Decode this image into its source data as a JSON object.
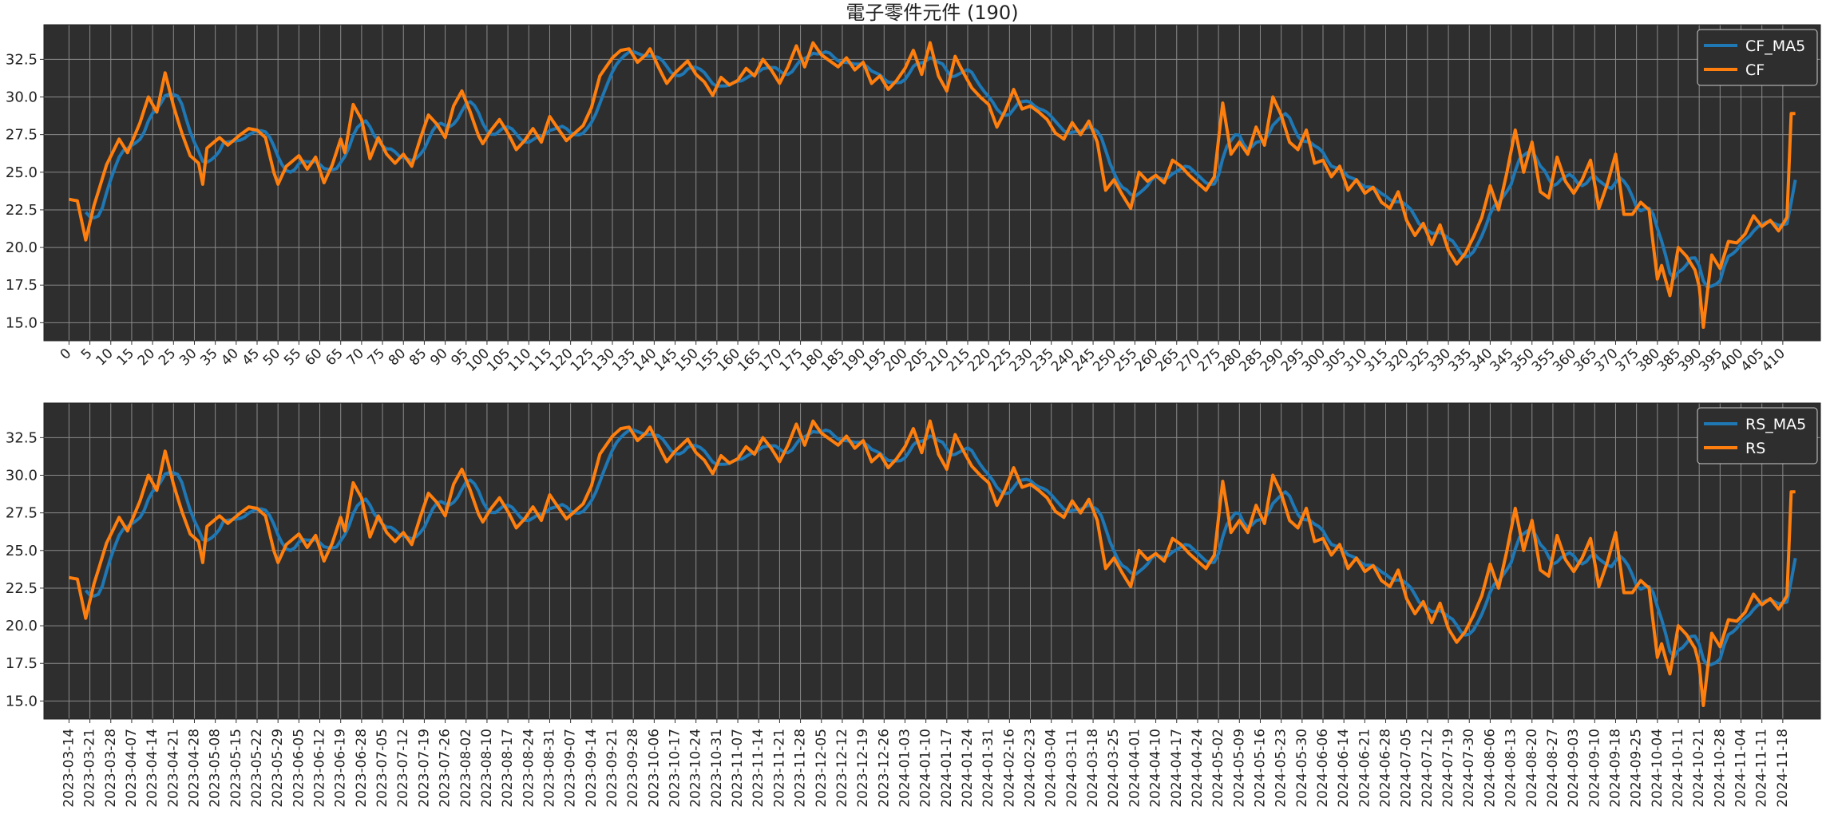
{
  "colors": {
    "background": "#ffffff",
    "plot_background": "#2e2e2e",
    "grid": "#8a8a8a",
    "ma_line": "#1f77b4",
    "raw_line": "#ff7f0e",
    "legend_background": "#2e2e2e",
    "legend_text": "#ffffff",
    "text": "#222222"
  },
  "chart_data": [
    {
      "type": "line",
      "title": "電子零件元件 (190)",
      "xlabel": "",
      "ylabel": "",
      "ylim": [
        13.8,
        34.8
      ],
      "xlim": [
        -6,
        419
      ],
      "yticks": [
        15.0,
        17.5,
        20.0,
        22.5,
        25.0,
        27.5,
        30.0,
        32.5
      ],
      "ytick_labels": [
        "15.0",
        "17.5",
        "20.0",
        "22.5",
        "25.0",
        "27.5",
        "30.0",
        "32.5"
      ],
      "xticks": [
        0,
        5,
        10,
        15,
        20,
        25,
        30,
        35,
        40,
        45,
        50,
        55,
        60,
        65,
        70,
        75,
        80,
        85,
        90,
        95,
        100,
        105,
        110,
        115,
        120,
        125,
        130,
        135,
        140,
        145,
        150,
        155,
        160,
        165,
        170,
        175,
        180,
        185,
        190,
        195,
        200,
        205,
        210,
        215,
        220,
        225,
        230,
        235,
        240,
        245,
        250,
        255,
        260,
        265,
        270,
        275,
        280,
        285,
        290,
        295,
        300,
        305,
        310,
        315,
        320,
        325,
        330,
        335,
        340,
        345,
        350,
        355,
        360,
        365,
        370,
        375,
        380,
        385,
        390,
        395,
        400,
        405,
        410
      ],
      "xtick_labels": [
        "0",
        "5",
        "10",
        "15",
        "20",
        "25",
        "30",
        "35",
        "40",
        "45",
        "50",
        "55",
        "60",
        "65",
        "70",
        "75",
        "80",
        "85",
        "90",
        "95",
        "100",
        "105",
        "110",
        "115",
        "120",
        "125",
        "130",
        "135",
        "140",
        "145",
        "150",
        "155",
        "160",
        "165",
        "170",
        "175",
        "180",
        "185",
        "190",
        "195",
        "200",
        "205",
        "210",
        "215",
        "220",
        "225",
        "230",
        "235",
        "240",
        "245",
        "250",
        "255",
        "260",
        "265",
        "270",
        "275",
        "280",
        "285",
        "290",
        "295",
        "300",
        "305",
        "310",
        "315",
        "320",
        "325",
        "330",
        "335",
        "340",
        "345",
        "350",
        "355",
        "360",
        "365",
        "370",
        "375",
        "380",
        "385",
        "390",
        "395",
        "400",
        "405",
        "410"
      ],
      "grid": true,
      "legend_position": "top-right",
      "anchors": [
        [
          0,
          23.2
        ],
        [
          2,
          23.1
        ],
        [
          4,
          20.5
        ],
        [
          6,
          22.8
        ],
        [
          9,
          25.5
        ],
        [
          12,
          27.2
        ],
        [
          14,
          26.3
        ],
        [
          17,
          28.3
        ],
        [
          19,
          30.0
        ],
        [
          21,
          29.0
        ],
        [
          23,
          31.6
        ],
        [
          25,
          29.4
        ],
        [
          27,
          27.6
        ],
        [
          29,
          26.1
        ],
        [
          31,
          25.6
        ],
        [
          32,
          24.2
        ],
        [
          33,
          26.6
        ],
        [
          36,
          27.3
        ],
        [
          38,
          26.8
        ],
        [
          41,
          27.5
        ],
        [
          43,
          27.9
        ],
        [
          45,
          27.8
        ],
        [
          47,
          27.3
        ],
        [
          49,
          25.0
        ],
        [
          50,
          24.2
        ],
        [
          52,
          25.4
        ],
        [
          55,
          26.1
        ],
        [
          57,
          25.2
        ],
        [
          59,
          26.0
        ],
        [
          61,
          24.3
        ],
        [
          63,
          25.5
        ],
        [
          65,
          27.2
        ],
        [
          66,
          26.3
        ],
        [
          68,
          29.5
        ],
        [
          70,
          28.5
        ],
        [
          72,
          25.9
        ],
        [
          74,
          27.3
        ],
        [
          76,
          26.2
        ],
        [
          78,
          25.6
        ],
        [
          80,
          26.2
        ],
        [
          82,
          25.4
        ],
        [
          84,
          27.2
        ],
        [
          86,
          28.8
        ],
        [
          88,
          28.2
        ],
        [
          90,
          27.3
        ],
        [
          92,
          29.4
        ],
        [
          94,
          30.4
        ],
        [
          96,
          29.0
        ],
        [
          98,
          27.4
        ],
        [
          99,
          26.9
        ],
        [
          101,
          27.8
        ],
        [
          103,
          28.5
        ],
        [
          105,
          27.6
        ],
        [
          107,
          26.5
        ],
        [
          109,
          27.1
        ],
        [
          111,
          27.9
        ],
        [
          113,
          27.0
        ],
        [
          115,
          28.7
        ],
        [
          117,
          27.9
        ],
        [
          119,
          27.1
        ],
        [
          121,
          27.6
        ],
        [
          123,
          28.1
        ],
        [
          125,
          29.3
        ],
        [
          127,
          31.4
        ],
        [
          130,
          32.6
        ],
        [
          132,
          33.1
        ],
        [
          134,
          33.2
        ],
        [
          136,
          32.3
        ],
        [
          138,
          32.8
        ],
        [
          139,
          33.2
        ],
        [
          141,
          32.0
        ],
        [
          143,
          30.9
        ],
        [
          145,
          31.6
        ],
        [
          148,
          32.4
        ],
        [
          150,
          31.5
        ],
        [
          152,
          31.0
        ],
        [
          154,
          30.1
        ],
        [
          156,
          31.3
        ],
        [
          158,
          30.8
        ],
        [
          160,
          31.1
        ],
        [
          162,
          31.9
        ],
        [
          164,
          31.4
        ],
        [
          166,
          32.5
        ],
        [
          168,
          31.8
        ],
        [
          170,
          30.9
        ],
        [
          172,
          32.0
        ],
        [
          174,
          33.4
        ],
        [
          176,
          32.0
        ],
        [
          178,
          33.6
        ],
        [
          180,
          32.8
        ],
        [
          182,
          32.4
        ],
        [
          184,
          32.0
        ],
        [
          186,
          32.6
        ],
        [
          188,
          31.8
        ],
        [
          190,
          32.3
        ],
        [
          192,
          30.9
        ],
        [
          194,
          31.4
        ],
        [
          196,
          30.5
        ],
        [
          198,
          31.1
        ],
        [
          200,
          31.9
        ],
        [
          202,
          33.1
        ],
        [
          204,
          31.5
        ],
        [
          206,
          33.6
        ],
        [
          208,
          31.4
        ],
        [
          210,
          30.4
        ],
        [
          212,
          32.7
        ],
        [
          214,
          31.6
        ],
        [
          216,
          30.6
        ],
        [
          218,
          30.0
        ],
        [
          220,
          29.5
        ],
        [
          222,
          28.0
        ],
        [
          224,
          29.1
        ],
        [
          226,
          30.5
        ],
        [
          228,
          29.2
        ],
        [
          230,
          29.4
        ],
        [
          232,
          29.0
        ],
        [
          234,
          28.5
        ],
        [
          236,
          27.6
        ],
        [
          238,
          27.2
        ],
        [
          240,
          28.3
        ],
        [
          242,
          27.5
        ],
        [
          244,
          28.4
        ],
        [
          246,
          27.0
        ],
        [
          248,
          23.8
        ],
        [
          250,
          24.5
        ],
        [
          252,
          23.5
        ],
        [
          254,
          22.6
        ],
        [
          256,
          25.0
        ],
        [
          258,
          24.4
        ],
        [
          260,
          24.8
        ],
        [
          262,
          24.3
        ],
        [
          264,
          25.8
        ],
        [
          266,
          25.4
        ],
        [
          268,
          24.8
        ],
        [
          270,
          24.3
        ],
        [
          272,
          23.8
        ],
        [
          274,
          24.7
        ],
        [
          276,
          29.6
        ],
        [
          278,
          26.2
        ],
        [
          280,
          27.0
        ],
        [
          282,
          26.2
        ],
        [
          284,
          28.0
        ],
        [
          286,
          26.8
        ],
        [
          288,
          30.0
        ],
        [
          290,
          28.8
        ],
        [
          292,
          27.0
        ],
        [
          294,
          26.5
        ],
        [
          296,
          27.8
        ],
        [
          298,
          25.6
        ],
        [
          300,
          25.8
        ],
        [
          302,
          24.7
        ],
        [
          304,
          25.4
        ],
        [
          306,
          23.8
        ],
        [
          308,
          24.5
        ],
        [
          310,
          23.6
        ],
        [
          312,
          24.0
        ],
        [
          314,
          23.0
        ],
        [
          316,
          22.6
        ],
        [
          318,
          23.7
        ],
        [
          320,
          21.8
        ],
        [
          322,
          20.8
        ],
        [
          324,
          21.6
        ],
        [
          326,
          20.2
        ],
        [
          328,
          21.5
        ],
        [
          330,
          19.8
        ],
        [
          332,
          18.9
        ],
        [
          334,
          19.6
        ],
        [
          336,
          20.7
        ],
        [
          338,
          22.0
        ],
        [
          340,
          24.1
        ],
        [
          342,
          22.5
        ],
        [
          344,
          25.0
        ],
        [
          346,
          27.8
        ],
        [
          348,
          25.0
        ],
        [
          350,
          27.0
        ],
        [
          352,
          23.7
        ],
        [
          354,
          23.3
        ],
        [
          356,
          26.0
        ],
        [
          358,
          24.4
        ],
        [
          360,
          23.6
        ],
        [
          362,
          24.5
        ],
        [
          364,
          25.8
        ],
        [
          366,
          22.6
        ],
        [
          368,
          24.2
        ],
        [
          370,
          26.2
        ],
        [
          372,
          22.2
        ],
        [
          374,
          22.2
        ],
        [
          376,
          23.0
        ],
        [
          378,
          22.5
        ],
        [
          380,
          17.9
        ],
        [
          381,
          18.8
        ],
        [
          383,
          16.8
        ],
        [
          385,
          20.0
        ],
        [
          387,
          19.4
        ],
        [
          389,
          18.5
        ],
        [
          390,
          17.4
        ],
        [
          391,
          14.7
        ],
        [
          393,
          19.5
        ],
        [
          395,
          18.6
        ],
        [
          397,
          20.4
        ],
        [
          399,
          20.3
        ],
        [
          401,
          20.9
        ],
        [
          403,
          22.1
        ],
        [
          405,
          21.4
        ],
        [
          407,
          21.8
        ],
        [
          409,
          21.1
        ],
        [
          411,
          22.0
        ],
        [
          412,
          28.9
        ],
        [
          413,
          28.9
        ]
      ],
      "series": [
        {
          "name": "CF_MA5",
          "color": "#1f77b4",
          "kind": "ma"
        },
        {
          "name": "CF",
          "color": "#ff7f0e",
          "kind": "raw"
        }
      ]
    },
    {
      "type": "line",
      "title": "",
      "xlabel": "",
      "ylabel": "",
      "ylim": [
        13.8,
        34.8
      ],
      "xlim": [
        -6,
        419
      ],
      "yticks": [
        15.0,
        17.5,
        20.0,
        22.5,
        25.0,
        27.5,
        30.0,
        32.5
      ],
      "ytick_labels": [
        "15.0",
        "17.5",
        "20.0",
        "22.5",
        "25.0",
        "27.5",
        "30.0",
        "32.5"
      ],
      "xticks": [
        0,
        5,
        10,
        15,
        20,
        25,
        30,
        35,
        40,
        45,
        50,
        55,
        60,
        65,
        70,
        75,
        80,
        85,
        90,
        95,
        100,
        105,
        110,
        115,
        120,
        125,
        130,
        135,
        140,
        145,
        150,
        155,
        160,
        165,
        170,
        175,
        180,
        185,
        190,
        195,
        200,
        205,
        210,
        215,
        220,
        225,
        230,
        235,
        240,
        245,
        250,
        255,
        260,
        265,
        270,
        275,
        280,
        285,
        290,
        295,
        300,
        305,
        310,
        315,
        320,
        325,
        330,
        335,
        340,
        345,
        350,
        355,
        360,
        365,
        370,
        375,
        380,
        385,
        390,
        395,
        400,
        405,
        410
      ],
      "xtick_labels": [
        "2023-03-14",
        "2023-03-21",
        "2023-03-28",
        "2023-04-07",
        "2023-04-14",
        "2023-04-21",
        "2023-04-28",
        "2023-05-08",
        "2023-05-15",
        "2023-05-22",
        "2023-05-29",
        "2023-06-05",
        "2023-06-12",
        "2023-06-19",
        "2023-06-28",
        "2023-07-05",
        "2023-07-12",
        "2023-07-19",
        "2023-07-26",
        "2023-08-02",
        "2023-08-10",
        "2023-08-17",
        "2023-08-24",
        "2023-08-31",
        "2023-09-07",
        "2023-09-14",
        "2023-09-21",
        "2023-09-28",
        "2023-10-06",
        "2023-10-17",
        "2023-10-24",
        "2023-10-31",
        "2023-11-07",
        "2023-11-14",
        "2023-11-21",
        "2023-11-28",
        "2023-12-05",
        "2023-12-12",
        "2023-12-19",
        "2023-12-26",
        "2024-01-03",
        "2024-01-10",
        "2024-01-17",
        "2024-01-24",
        "2024-01-31",
        "2024-02-16",
        "2024-02-23",
        "2024-03-04",
        "2024-03-11",
        "2024-03-18",
        "2024-03-25",
        "2024-04-01",
        "2024-04-10",
        "2024-04-17",
        "2024-04-24",
        "2024-05-02",
        "2024-05-09",
        "2024-05-16",
        "2024-05-23",
        "2024-05-30",
        "2024-06-06",
        "2024-06-14",
        "2024-06-21",
        "2024-06-28",
        "2024-07-05",
        "2024-07-12",
        "2024-07-19",
        "2024-07-30",
        "2024-08-06",
        "2024-08-13",
        "2024-08-20",
        "2024-08-27",
        "2024-09-03",
        "2024-09-10",
        "2024-09-18",
        "2024-09-25",
        "2024-10-04",
        "2024-10-11",
        "2024-10-21",
        "2024-10-28",
        "2024-11-04",
        "2024-11-11",
        "2024-11-18"
      ],
      "grid": true,
      "legend_position": "top-right",
      "same_values_as_panel": 0,
      "series": [
        {
          "name": "RS_MA5",
          "color": "#1f77b4",
          "kind": "ma"
        },
        {
          "name": "RS",
          "color": "#ff7f0e",
          "kind": "raw"
        }
      ]
    }
  ]
}
